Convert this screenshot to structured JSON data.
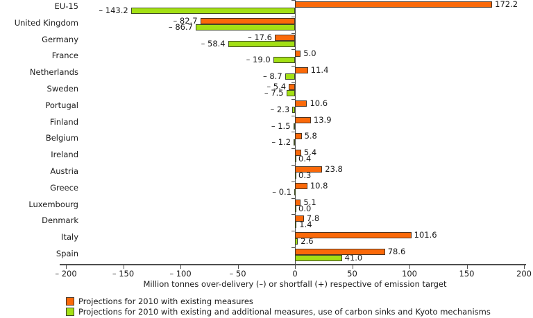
{
  "chart_data": {
    "type": "bar",
    "orientation": "horizontal",
    "title": "",
    "categories": [
      "EU-15",
      "United Kingdom",
      "Germany",
      "France",
      "Netherlands",
      "Sweden",
      "Portugal",
      "Finland",
      "Belgium",
      "Ireland",
      "Austria",
      "Greece",
      "Luxembourg",
      "Denmark",
      "Italy",
      "Spain"
    ],
    "series": [
      {
        "name": "Projections for 2010 with existing measures",
        "color": "#fb6909",
        "border_color": "#4a3526",
        "values": [
          172.2,
          -82.7,
          -17.6,
          5.0,
          11.4,
          -5.4,
          10.6,
          13.9,
          5.8,
          5.4,
          23.8,
          10.8,
          5.1,
          7.8,
          101.6,
          78.6
        ]
      },
      {
        "name": "Projections for 2010 with existing and additional measures, use of carbon sinks and Kyoto mechanisms",
        "color": "#a3e014",
        "border_color": "#3e4a26",
        "values": [
          -143.2,
          -86.7,
          -58.4,
          -19.0,
          -8.7,
          -7.5,
          -2.3,
          -1.5,
          -1.2,
          0.4,
          0.3,
          -0.1,
          0.0,
          1.4,
          2.6,
          41.0
        ]
      }
    ],
    "xlabel": "Million tonnes over-delivery (–) or shortfall (+) respective of emission target",
    "xlim": [
      -200,
      200
    ],
    "xticks": [
      -200,
      -150,
      -100,
      -50,
      0,
      50,
      100,
      150,
      200
    ],
    "grid": false,
    "axis_color": "#4d4d4d",
    "legend_position": "bottom-left"
  }
}
